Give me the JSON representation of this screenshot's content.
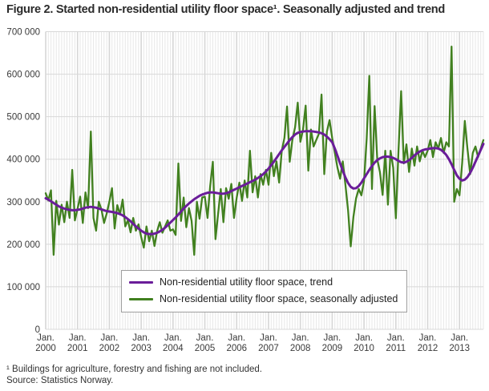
{
  "title": "Figure 2. Started non-residential utility floor space¹. Seasonally adjusted and trend",
  "footnote": "¹ Buildings for agriculture, forestry and fishing are not included.",
  "source": "Source: Statistics Norway.",
  "legend": {
    "trend": "Non-residential utility floor space, trend",
    "seasonal": "Non-residential utility floor space, seasonally adjusted"
  },
  "colors": {
    "trend": "#6a1d99",
    "seasonal": "#41801f",
    "grid_month": "#e7e7e7",
    "grid_year": "#d6d6d6",
    "grid_horizontal": "#d8d8d8",
    "axis_text": "#3a3a3a"
  },
  "chart_data": {
    "type": "line",
    "title": "Figure 2. Started non-residential utility floor space¹. Seasonally adjusted and trend",
    "x_start": "Jan. 2000",
    "x_end": "Oct. 2013",
    "months_per_point": 1,
    "ylim": [
      0,
      700000
    ],
    "y_tick_labels": [
      "0",
      "100 000",
      "200 000",
      "300 000",
      "400 000",
      "500 000",
      "600 000",
      "700 000"
    ],
    "x_tick_labels": [
      "Jan. 2000",
      "Jan. 2001",
      "Jan. 2002",
      "Jan. 2003",
      "Jan. 2004",
      "Jan. 2005",
      "Jan. 2006",
      "Jan. 2007",
      "Jan. 2008",
      "Jan. 2009",
      "Jan. 2010",
      "Jan. 2011",
      "Jan. 2012",
      "Jan. 2013"
    ],
    "grid": "on",
    "legend_position": "inside-bottom-center",
    "series": [
      {
        "name": "Non-residential utility floor space, seasonally adjusted",
        "color": "#41801f",
        "values": [
          320000,
          303000,
          327000,
          175000,
          302000,
          246000,
          293000,
          252000,
          300000,
          262000,
          375000,
          256000,
          283000,
          312000,
          250000,
          322000,
          285000,
          465000,
          262000,
          232000,
          300000,
          282000,
          250000,
          272000,
          300000,
          332000,
          237000,
          292000,
          270000,
          305000,
          242000,
          257000,
          228000,
          262000,
          232000,
          247000,
          217000,
          192000,
          242000,
          207000,
          232000,
          196000,
          231000,
          252000,
          227000,
          242000,
          256000,
          232000,
          235000,
          222000,
          390000,
          255000,
          310000,
          240000,
          285000,
          255000,
          175000,
          300000,
          260000,
          310000,
          312000,
          262000,
          337000,
          394000,
          212000,
          272000,
          330000,
          252000,
          332000,
          307000,
          342000,
          262000,
          310000,
          345000,
          302000,
          350000,
          310000,
          420000,
          322000,
          360000,
          310000,
          365000,
          340000,
          375000,
          340000,
          415000,
          360000,
          395000,
          345000,
          420000,
          450000,
          524000,
          394000,
          445000,
          475000,
          533000,
          441000,
          470000,
          526000,
          373000,
          470000,
          430000,
          445000,
          460000,
          552000,
          365000,
          465000,
          492000,
          450000,
          415000,
          380000,
          354000,
          395000,
          340000,
          280000,
          195000,
          265000,
          308000,
          330000,
          315000,
          348000,
          448000,
          596000,
          330000,
          525000,
          400000,
          370000,
          316000,
          420000,
          293000,
          420000,
          380000,
          261000,
          420000,
          560000,
          390000,
          435000,
          370000,
          425000,
          385000,
          430000,
          395000,
          420000,
          405000,
          420000,
          445000,
          405000,
          440000,
          425000,
          450000,
          415000,
          440000,
          430000,
          665000,
          300000,
          330000,
          315000,
          390000,
          490000,
          425000,
          365000,
          415000,
          430000,
          405000,
          425000,
          445000
        ]
      },
      {
        "name": "Non-residential utility floor space, trend",
        "color": "#6a1d99",
        "values": [
          308000,
          305000,
          301000,
          297000,
          293000,
          289000,
          286000,
          284000,
          282000,
          281000,
          280000,
          280000,
          281000,
          282000,
          284000,
          286000,
          287000,
          288000,
          287000,
          286000,
          284000,
          282000,
          280000,
          278000,
          277000,
          276000,
          275000,
          273000,
          271000,
          268000,
          264000,
          259000,
          254000,
          248000,
          242000,
          237000,
          232000,
          228000,
          225000,
          224000,
          224000,
          225000,
          227000,
          230000,
          234000,
          239000,
          245000,
          251000,
          257000,
          263000,
          270000,
          277000,
          284000,
          290000,
          296000,
          301000,
          306000,
          310000,
          314000,
          317000,
          319000,
          321000,
          322000,
          322000,
          321000,
          320000,
          319000,
          319000,
          320000,
          322000,
          325000,
          328000,
          331000,
          334000,
          337000,
          340000,
          343000,
          346000,
          349000,
          352000,
          356000,
          360000,
          365000,
          371000,
          378000,
          386000,
          394000,
          403000,
          412000,
          421000,
          429000,
          437000,
          445000,
          452000,
          458000,
          462000,
          464000,
          465000,
          466000,
          466000,
          466000,
          465000,
          464000,
          463000,
          461000,
          458000,
          453000,
          447000,
          440000,
          425000,
          408000,
          390000,
          373000,
          357000,
          344000,
          335000,
          331000,
          332000,
          337000,
          345000,
          355000,
          365000,
          375000,
          384000,
          392000,
          398000,
          402000,
          405000,
          406000,
          406000,
          405000,
          403000,
          400000,
          396000,
          393000,
          392000,
          394000,
          398000,
          403000,
          409000,
          414000,
          418000,
          421000,
          423000,
          424000,
          425000,
          426000,
          426000,
          425000,
          422000,
          417000,
          410000,
          400000,
          388000,
          375000,
          362000,
          354000,
          350000,
          352000,
          358000,
          368000,
          380000,
          394000,
          408000,
          422000,
          436000
        ]
      }
    ]
  }
}
